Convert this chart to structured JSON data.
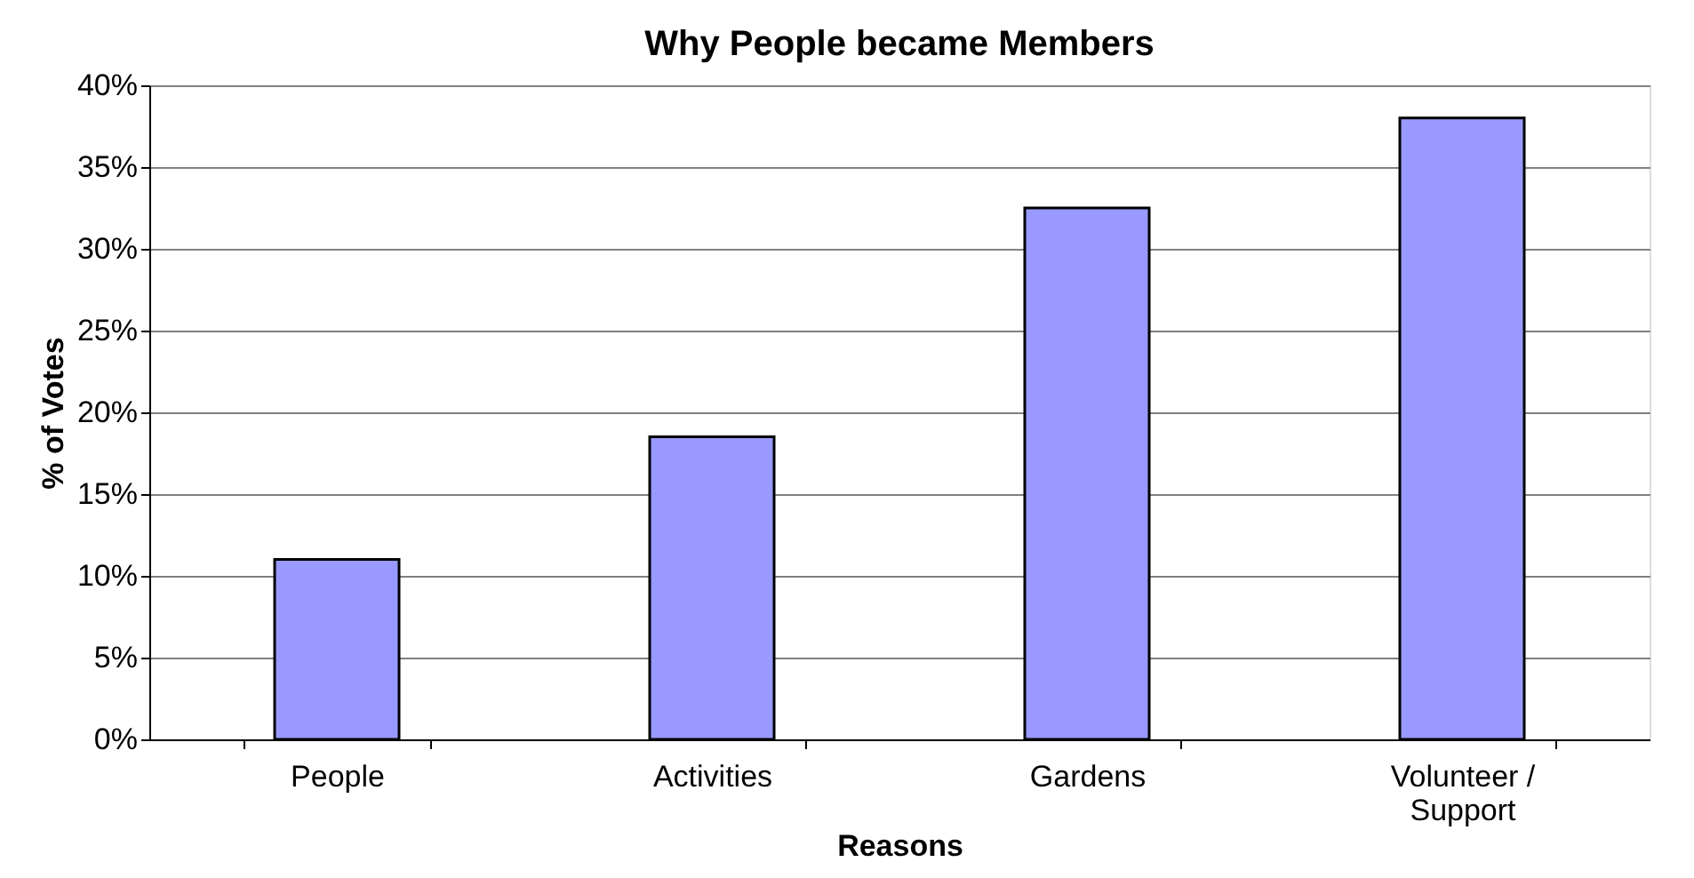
{
  "chart_data": {
    "type": "bar",
    "title": "Why People became Members",
    "xlabel": "Reasons",
    "ylabel": "% of Votes",
    "categories": [
      "People",
      "Activities",
      "Gardens",
      "Volunteer / Support"
    ],
    "values": [
      11,
      18.5,
      32.5,
      38
    ],
    "color": "#9999ff",
    "ylim": [
      0,
      40
    ],
    "yticks": [
      {
        "value": 0,
        "label": "0%"
      },
      {
        "value": 5,
        "label": "5%"
      },
      {
        "value": 10,
        "label": "10%"
      },
      {
        "value": 15,
        "label": "15%"
      },
      {
        "value": 20,
        "label": "20%"
      },
      {
        "value": 25,
        "label": "25%"
      },
      {
        "value": 30,
        "label": "30%"
      },
      {
        "value": 35,
        "label": "35%"
      },
      {
        "value": 40,
        "label": "40%"
      }
    ],
    "grid": "y"
  }
}
